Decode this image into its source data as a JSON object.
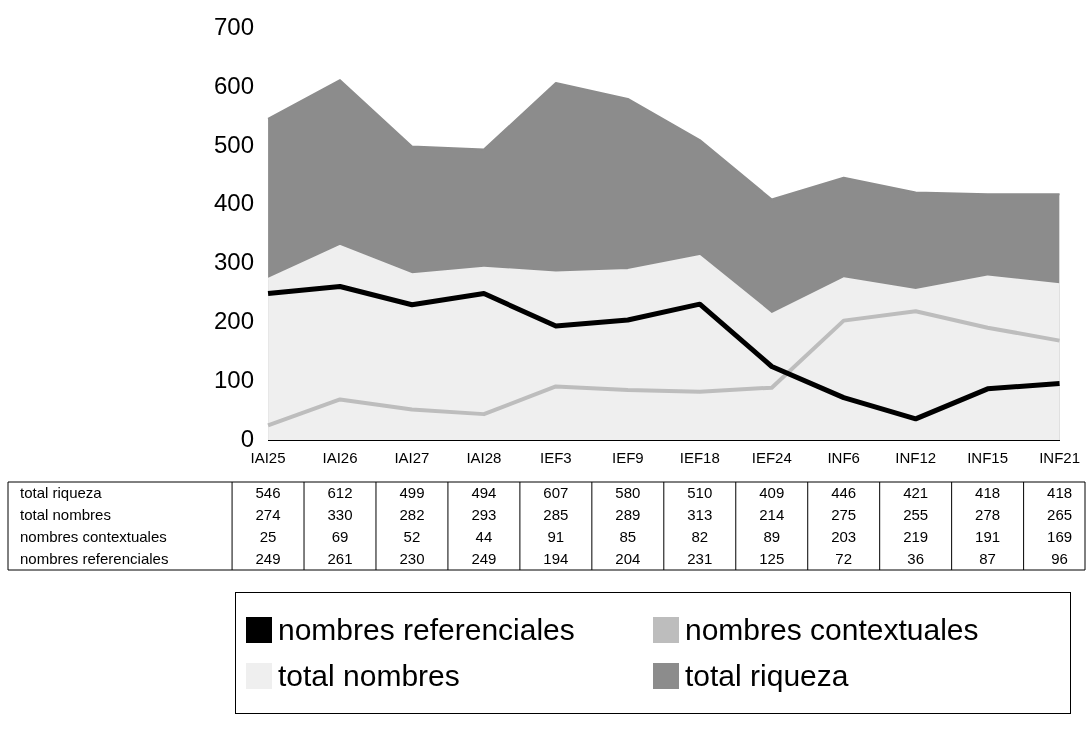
{
  "chart_data": {
    "type": "area",
    "categories": [
      "IAI25",
      "IAI26",
      "IAI27",
      "IAI28",
      "IEF3",
      "IEF9",
      "IEF18",
      "IEF24",
      "INF6",
      "INF12",
      "INF15",
      "INF21"
    ],
    "series": [
      {
        "name": "total riqueza",
        "color": "#8c8c8c",
        "values": [
          546,
          612,
          499,
          494,
          607,
          580,
          510,
          409,
          446,
          421,
          418,
          418
        ]
      },
      {
        "name": "total nombres",
        "color": "#efefef",
        "values": [
          274,
          330,
          282,
          293,
          285,
          289,
          313,
          214,
          275,
          255,
          278,
          265
        ]
      },
      {
        "name": "nombres contextuales",
        "type": "line",
        "color": "#bdbdbd",
        "values": [
          25,
          69,
          52,
          44,
          91,
          85,
          82,
          89,
          203,
          219,
          191,
          169
        ]
      },
      {
        "name": "nombres referenciales",
        "type": "line",
        "color": "#000000",
        "values": [
          249,
          261,
          230,
          249,
          194,
          204,
          231,
          125,
          72,
          36,
          87,
          96
        ]
      }
    ],
    "ylim": [
      0,
      700
    ],
    "yticks": [
      0,
      100,
      200,
      300,
      400,
      500,
      600,
      700
    ],
    "grid": false,
    "legend": "bottom",
    "data_labels": true,
    "marker": "none"
  }
}
